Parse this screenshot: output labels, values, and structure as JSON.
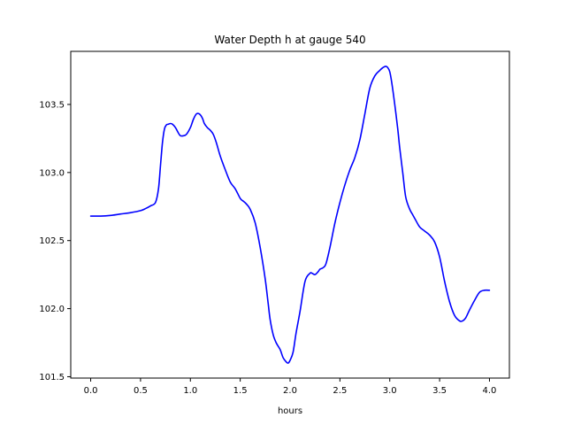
{
  "chart_data": {
    "type": "line",
    "title": "Water Depth h at gauge 540",
    "xlabel": "hours",
    "ylabel": "",
    "xlim": [
      -0.2,
      4.2
    ],
    "ylim": [
      101.49,
      103.89
    ],
    "x_ticks": [
      0.0,
      0.5,
      1.0,
      1.5,
      2.0,
      2.5,
      3.0,
      3.5,
      4.0
    ],
    "x_tick_labels": [
      "0.0",
      "0.5",
      "1.0",
      "1.5",
      "2.0",
      "2.5",
      "3.0",
      "3.5",
      "4.0"
    ],
    "y_ticks": [
      101.5,
      102.0,
      102.5,
      103.0,
      103.5
    ],
    "y_tick_labels": [
      "101.5",
      "102.0",
      "102.5",
      "103.0",
      "103.5"
    ],
    "grid": false,
    "legend": "none",
    "series": [
      {
        "color": "#0000ff",
        "x": [
          0.0,
          0.1,
          0.2,
          0.3,
          0.4,
          0.5,
          0.55,
          0.6,
          0.65,
          0.68,
          0.7,
          0.72,
          0.74,
          0.76,
          0.78,
          0.8,
          0.82,
          0.85,
          0.88,
          0.9,
          0.93,
          0.96,
          1.0,
          1.03,
          1.06,
          1.09,
          1.12,
          1.14,
          1.17,
          1.2,
          1.23,
          1.26,
          1.3,
          1.35,
          1.4,
          1.45,
          1.5,
          1.53,
          1.56,
          1.6,
          1.65,
          1.7,
          1.75,
          1.78,
          1.8,
          1.83,
          1.86,
          1.9,
          1.93,
          1.96,
          1.98,
          2.0,
          2.03,
          2.06,
          2.1,
          2.15,
          2.2,
          2.22,
          2.25,
          2.28,
          2.3,
          2.33,
          2.36,
          2.4,
          2.45,
          2.5,
          2.55,
          2.6,
          2.65,
          2.7,
          2.75,
          2.8,
          2.85,
          2.9,
          2.93,
          2.96,
          2.98,
          3.0,
          3.02,
          3.05,
          3.08,
          3.1,
          3.13,
          3.16,
          3.2,
          3.23,
          3.26,
          3.3,
          3.35,
          3.4,
          3.45,
          3.5,
          3.55,
          3.6,
          3.65,
          3.7,
          3.73,
          3.76,
          3.8,
          3.85,
          3.9,
          3.95,
          4.0
        ],
        "y": [
          102.68,
          102.68,
          102.685,
          102.695,
          102.705,
          102.72,
          102.735,
          102.755,
          102.78,
          102.88,
          103.05,
          103.22,
          103.32,
          103.35,
          103.355,
          103.36,
          103.355,
          103.33,
          103.29,
          103.27,
          103.27,
          103.28,
          103.33,
          103.39,
          103.43,
          103.43,
          103.4,
          103.36,
          103.33,
          103.31,
          103.28,
          103.22,
          103.12,
          103.02,
          102.93,
          102.88,
          102.81,
          102.79,
          102.77,
          102.73,
          102.63,
          102.45,
          102.22,
          102.04,
          101.92,
          101.81,
          101.75,
          101.7,
          101.64,
          101.61,
          101.6,
          101.62,
          101.68,
          101.82,
          101.98,
          102.2,
          102.26,
          102.26,
          102.25,
          102.27,
          102.29,
          102.3,
          102.33,
          102.45,
          102.63,
          102.78,
          102.91,
          103.02,
          103.11,
          103.24,
          103.43,
          103.62,
          103.71,
          103.75,
          103.77,
          103.78,
          103.77,
          103.74,
          103.66,
          103.5,
          103.32,
          103.18,
          103.0,
          102.82,
          102.73,
          102.69,
          102.65,
          102.6,
          102.57,
          102.54,
          102.49,
          102.38,
          102.2,
          102.05,
          101.95,
          101.91,
          101.91,
          101.93,
          101.99,
          102.06,
          102.12,
          102.135,
          102.135
        ]
      }
    ]
  }
}
